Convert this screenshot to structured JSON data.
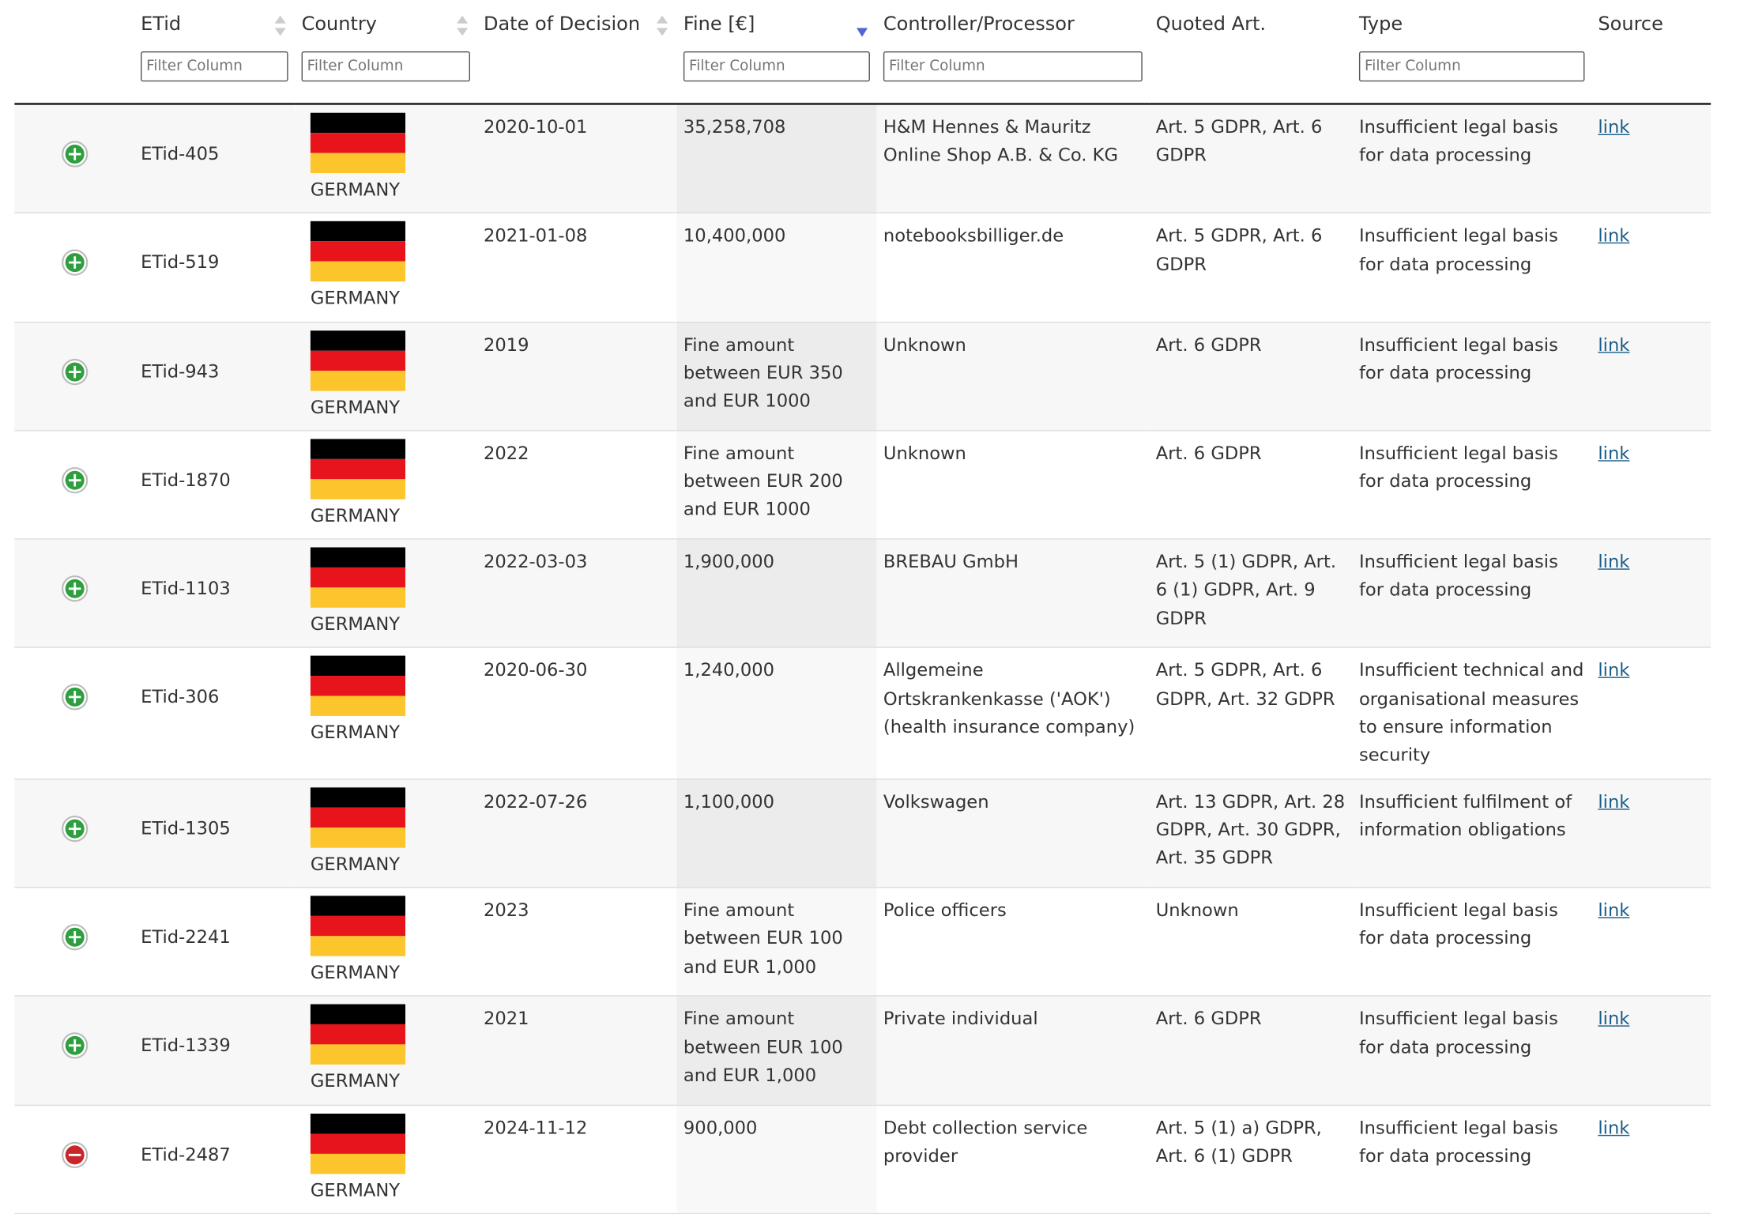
{
  "columns": [
    {
      "label": "ETid",
      "filter": "Filter Column"
    },
    {
      "label": "Country",
      "filter": "Filter Column"
    },
    {
      "label": "Date of Decision",
      "filter": null
    },
    {
      "label": "Fine [€]",
      "filter": "Filter Column"
    },
    {
      "label": "Controller/Processor",
      "filter": "Filter Column"
    },
    {
      "label": "Quoted Art.",
      "filter": null
    },
    {
      "label": "Type",
      "filter": "Filter Column"
    },
    {
      "label": "Source",
      "filter": null
    }
  ],
  "rows": [
    {
      "expanded": false,
      "etid": "ETid-405",
      "country": "GERMANY",
      "date": "2020-10-01",
      "fine": "35,258,708",
      "controller": "H&M Hennes & Mauritz Online Shop A.B. & Co. KG",
      "quoted": "Art. 5 GDPR, Art. 6 GDPR",
      "type": "Insufficient legal basis for data processing",
      "source": "link"
    },
    {
      "expanded": false,
      "etid": "ETid-519",
      "country": "GERMANY",
      "date": "2021-01-08",
      "fine": "10,400,000",
      "controller": "notebooksbilliger.de",
      "quoted": "Art. 5 GDPR, Art. 6 GDPR",
      "type": "Insufficient legal basis for data processing",
      "source": "link"
    },
    {
      "expanded": false,
      "etid": "ETid-943",
      "country": "GERMANY",
      "date": "2019",
      "fine": "Fine amount between EUR 350 and EUR 1000",
      "controller": "Unknown",
      "quoted": "Art. 6 GDPR",
      "type": "Insufficient legal basis for data processing",
      "source": "link"
    },
    {
      "expanded": false,
      "etid": "ETid-1870",
      "country": "GERMANY",
      "date": "2022",
      "fine": "Fine amount between EUR 200 and EUR 1000",
      "controller": "Unknown",
      "quoted": "Art. 6 GDPR",
      "type": "Insufficient legal basis for data processing",
      "source": "link"
    },
    {
      "expanded": false,
      "etid": "ETid-1103",
      "country": "GERMANY",
      "date": "2022-03-03",
      "fine": "1,900,000",
      "controller": "BREBAU GmbH",
      "quoted": "Art. 5 (1) GDPR, Art. 6 (1) GDPR, Art. 9 GDPR",
      "type": "Insufficient legal basis for data processing",
      "source": "link"
    },
    {
      "expanded": false,
      "etid": "ETid-306",
      "country": "GERMANY",
      "date": "2020-06-30",
      "fine": "1,240,000",
      "controller": "Allgemeine Ortskrankenkasse ('AOK') (health insurance company)",
      "quoted": "Art. 5 GDPR, Art. 6 GDPR, Art. 32 GDPR",
      "type": "Insufficient technical and organisational measures to ensure information security",
      "source": "link"
    },
    {
      "expanded": false,
      "etid": "ETid-1305",
      "country": "GERMANY",
      "date": "2022-07-26",
      "fine": "1,100,000",
      "controller": "Volkswagen",
      "quoted": "Art. 13 GDPR, Art. 28 GDPR, Art. 30 GDPR, Art. 35 GDPR",
      "type": "Insufficient fulfilment of information obligations",
      "source": "link"
    },
    {
      "expanded": false,
      "etid": "ETid-2241",
      "country": "GERMANY",
      "date": "2023",
      "fine": "Fine amount between EUR 100 and EUR 1,000",
      "controller": "Police officers",
      "quoted": "Unknown",
      "type": "Insufficient legal basis for data processing",
      "source": "link"
    },
    {
      "expanded": false,
      "etid": "ETid-1339",
      "country": "GERMANY",
      "date": "2021",
      "fine": "Fine amount between EUR 100 and EUR 1,000",
      "controller": "Private individual",
      "quoted": "Art. 6 GDPR",
      "type": "Insufficient legal basis for data processing",
      "source": "link"
    },
    {
      "expanded": true,
      "etid": "ETid-2487",
      "country": "GERMANY",
      "date": "2024-11-12",
      "fine": "900,000",
      "controller": "Debt collection service provider",
      "quoted": "Art. 5 (1) a) GDPR, Art. 6 (1) GDPR",
      "type": "Insufficient legal basis for data processing",
      "source": "link"
    }
  ]
}
